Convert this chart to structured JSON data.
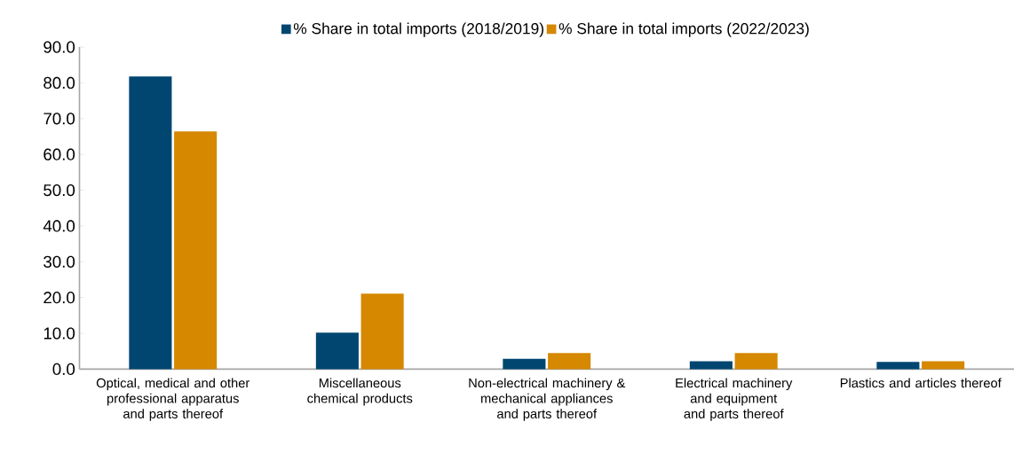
{
  "chart_data": {
    "type": "bar",
    "categories": [
      "Optical, medical and other professional apparatus and parts thereof",
      "Miscellaneous chemical products",
      "Non-electrical machinery & mechanical appliances and parts thereof",
      "Electrical machinery and equipment and parts thereof",
      "Plastics and articles thereof"
    ],
    "series": [
      {
        "name": "% Share in total imports (2018/2019)",
        "color": "#004670",
        "values": [
          81.8,
          10.2,
          2.9,
          2.2,
          2.0
        ]
      },
      {
        "name": "% Share in total imports (2022/2023)",
        "color": "#d58800",
        "values": [
          66.4,
          21.1,
          4.5,
          4.5,
          2.2
        ]
      }
    ],
    "ylim": [
      0,
      90
    ],
    "yticks": [
      {
        "value": 0,
        "label": "0.0"
      },
      {
        "value": 10,
        "label": "10.0"
      },
      {
        "value": 20,
        "label": "20.0"
      },
      {
        "value": 30,
        "label": "30.0"
      },
      {
        "value": 40,
        "label": "40.0"
      },
      {
        "value": 50,
        "label": "50.0"
      },
      {
        "value": 60,
        "label": "60.0"
      },
      {
        "value": 70,
        "label": "70.0"
      },
      {
        "value": 80,
        "label": "80.0"
      },
      {
        "value": 90,
        "label": "90.0"
      }
    ],
    "grid": false,
    "legend": "top"
  }
}
